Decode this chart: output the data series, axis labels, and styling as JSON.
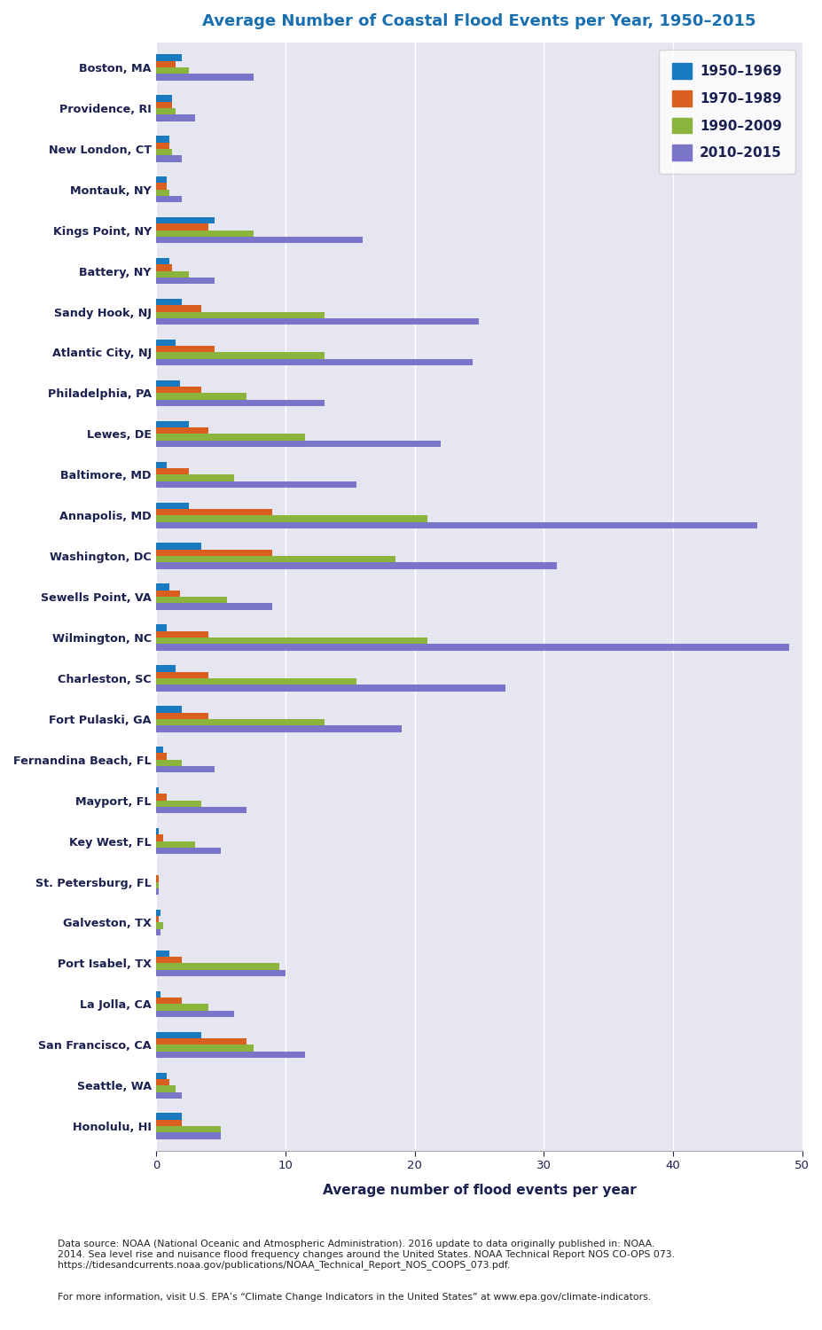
{
  "title": "Average Number of Coastal Flood Events per Year, 1950–2015",
  "xlabel": "Average number of flood events per year",
  "xlim": [
    0,
    50
  ],
  "xticks": [
    0,
    10,
    20,
    30,
    40,
    50
  ],
  "plot_bg": "#e6e6f0",
  "fig_bg": "#ffffff",
  "title_color": "#1a6faf",
  "label_color": "#1a2050",
  "series_colors": [
    "#1a7abf",
    "#d95f1e",
    "#8ab43c",
    "#7b75c9"
  ],
  "series_labels": [
    "1950–1969",
    "1970–1989",
    "1990–2009",
    "2010–2015"
  ],
  "stations": [
    "Boston, MA",
    "Providence, RI",
    "New London, CT",
    "Montauk, NY",
    "Kings Point, NY",
    "Battery, NY",
    "Sandy Hook, NJ",
    "Atlantic City, NJ",
    "Philadelphia, PA",
    "Lewes, DE",
    "Baltimore, MD",
    "Annapolis, MD",
    "Washington, DC",
    "Sewells Point, VA",
    "Wilmington, NC",
    "Charleston, SC",
    "Fort Pulaski, GA",
    "Fernandina Beach, FL",
    "Mayport, FL",
    "Key West, FL",
    "St. Petersburg, FL",
    "Galveston, TX",
    "Port Isabel, TX",
    "La Jolla, CA",
    "San Francisco, CA",
    "Seattle, WA",
    "Honolulu, HI"
  ],
  "values_1950_1969": [
    2.0,
    1.2,
    1.0,
    0.8,
    4.5,
    1.0,
    2.0,
    1.5,
    1.8,
    2.5,
    0.8,
    2.5,
    3.5,
    1.0,
    0.8,
    1.5,
    2.0,
    0.5,
    0.2,
    0.2,
    0.0,
    0.3,
    1.0,
    0.3,
    3.5,
    0.8,
    2.0
  ],
  "values_1970_1989": [
    1.5,
    1.2,
    1.0,
    0.8,
    4.0,
    1.2,
    3.5,
    4.5,
    3.5,
    4.0,
    2.5,
    9.0,
    9.0,
    1.8,
    4.0,
    4.0,
    4.0,
    0.8,
    0.8,
    0.5,
    0.2,
    0.2,
    2.0,
    2.0,
    7.0,
    1.0,
    2.0
  ],
  "values_1990_2009": [
    2.5,
    1.5,
    1.2,
    1.0,
    7.5,
    2.5,
    13.0,
    13.0,
    7.0,
    11.5,
    6.0,
    21.0,
    18.5,
    5.5,
    21.0,
    15.5,
    13.0,
    2.0,
    3.5,
    3.0,
    0.2,
    0.5,
    9.5,
    4.0,
    7.5,
    1.5,
    5.0
  ],
  "values_2010_2015": [
    7.5,
    3.0,
    2.0,
    2.0,
    16.0,
    4.5,
    25.0,
    24.5,
    13.0,
    22.0,
    15.5,
    46.5,
    31.0,
    9.0,
    49.0,
    27.0,
    19.0,
    4.5,
    7.0,
    5.0,
    0.2,
    0.3,
    10.0,
    6.0,
    11.5,
    2.0,
    5.0
  ],
  "footnote_line1": "Data source: NOAA (National Oceanic and Atmospheric Administration). 2016 update to data originally published in: NOAA.",
  "footnote_line2": "2014. Sea level rise and nuisance flood frequency changes around the United States. NOAA Technical Report NOS CO-OPS 073.",
  "footnote_line3": "https://tidesandcurrents.noaa.gov/publications/NOAA_Technical_Report_NOS_COOPS_073.pdf.",
  "footnote_line4": "For more information, visit U.S. EPA’s “Climate Change Indicators in the United States” at www.epa.gov/climate-indicators."
}
